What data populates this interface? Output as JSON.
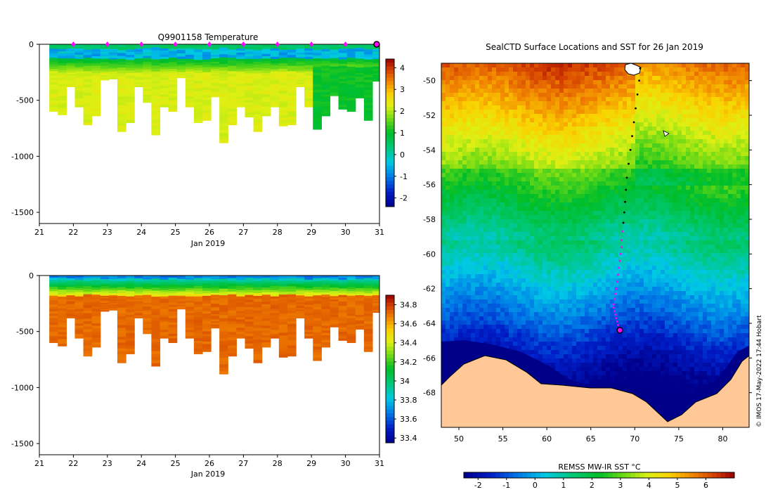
{
  "chart_data": [
    {
      "type": "heatmap",
      "id": "temp_section",
      "title": "Q9901158  Temperature",
      "xlabel": "Jan 2019",
      "ylabel": "",
      "xlim": [
        21,
        31
      ],
      "ylim": [
        -1600,
        0
      ],
      "x_ticks": [
        "21",
        "22",
        "23",
        "24",
        "25",
        "26",
        "27",
        "28",
        "29",
        "30",
        "31"
      ],
      "y_ticks": [
        "0",
        "-500",
        "-1000",
        "-1500"
      ],
      "y_tick_values": [
        0,
        -500,
        -1000,
        -1500
      ],
      "colorbar": {
        "min": -2.4,
        "max": 4.4,
        "ticks": [
          4,
          3,
          2,
          1,
          0,
          -1,
          -2
        ],
        "tick_labels": [
          "4",
          "3",
          "2",
          "1",
          "0",
          "-1",
          "-2"
        ]
      },
      "profile_times": [
        21.3,
        21.55,
        21.8,
        22.05,
        22.3,
        22.55,
        22.8,
        23.05,
        23.3,
        23.55,
        23.8,
        24.05,
        24.3,
        24.55,
        24.8,
        25.05,
        25.3,
        25.55,
        25.8,
        26.05,
        26.3,
        26.55,
        26.8,
        27.05,
        27.3,
        27.55,
        27.8,
        28.05,
        28.3,
        28.55,
        28.8,
        29.05,
        29.3,
        29.55,
        29.8,
        30.05,
        30.3,
        30.55,
        30.8
      ],
      "profile_max_depth": [
        600,
        630,
        380,
        560,
        720,
        640,
        320,
        310,
        780,
        700,
        380,
        520,
        810,
        560,
        600,
        300,
        560,
        700,
        680,
        470,
        880,
        720,
        560,
        650,
        780,
        640,
        560,
        730,
        720,
        380,
        560,
        760,
        640,
        460,
        580,
        600,
        480,
        680,
        330
      ],
      "marker_days": [
        22,
        23,
        24,
        25,
        26,
        27,
        28,
        29,
        30
      ],
      "current_marker_day": 31
    },
    {
      "type": "heatmap",
      "id": "sal_section",
      "title": "",
      "xlabel": "Jan 2019",
      "ylabel": "",
      "xlim": [
        21,
        31
      ],
      "ylim": [
        -1600,
        0
      ],
      "x_ticks": [
        "21",
        "22",
        "23",
        "24",
        "25",
        "26",
        "27",
        "28",
        "29",
        "30",
        "31"
      ],
      "y_ticks": [
        "0",
        "-500",
        "-1000",
        "-1500"
      ],
      "y_tick_values": [
        0,
        -500,
        -1000,
        -1500
      ],
      "colorbar": {
        "min": 33.35,
        "max": 34.9,
        "ticks": [
          34.8,
          34.6,
          34.4,
          34.2,
          34,
          33.8,
          33.6,
          33.4
        ],
        "tick_labels": [
          "34.8",
          "34.6",
          "34.4",
          "34.2",
          "34",
          "33.8",
          "33.6",
          "33.4"
        ]
      }
    },
    {
      "type": "heatmap",
      "id": "sst_map",
      "title": "SealCTD Surface Locations and SST for 26 Jan 2019",
      "xlabel": "",
      "ylabel": "",
      "xlim": [
        48,
        83
      ],
      "ylim": [
        -70,
        -49
      ],
      "x_ticks": [
        "50",
        "55",
        "60",
        "65",
        "70",
        "75",
        "80"
      ],
      "x_tick_values": [
        50,
        55,
        60,
        65,
        70,
        75,
        80
      ],
      "y_ticks": [
        "-50",
        "-52",
        "-54",
        "-56",
        "-58",
        "-60",
        "-62",
        "-64",
        "-66",
        "-68"
      ],
      "y_tick_values": [
        -50,
        -52,
        -54,
        -56,
        -58,
        -60,
        -62,
        -64,
        -66,
        -68
      ],
      "colorbar": {
        "label": "REMSS MW-IR SST °C",
        "min": -2.5,
        "max": 7,
        "ticks": [
          -2,
          -1,
          0,
          1,
          2,
          3,
          4,
          5,
          6
        ],
        "tick_labels": [
          "-2",
          "-1",
          "0",
          "1",
          "2",
          "3",
          "4",
          "5",
          "6"
        ]
      },
      "track": {
        "lon": [
          70.6,
          70.5,
          70.3,
          70.1,
          69.9,
          69.7,
          69.5,
          69.3,
          69.1,
          69.0,
          68.9,
          68.8,
          68.7,
          68.6,
          68.5,
          68.5,
          68.4,
          68.3,
          68.2,
          68.1,
          68.0,
          67.9,
          67.8,
          67.7,
          67.6,
          67.6,
          67.7,
          67.8,
          67.9,
          68.0,
          68.1,
          68.2,
          68.3
        ],
        "lat": [
          -49.3,
          -50.0,
          -50.8,
          -51.6,
          -52.4,
          -53.2,
          -54.0,
          -54.8,
          -55.6,
          -56.3,
          -57.0,
          -57.6,
          -58.2,
          -58.7,
          -59.2,
          -59.6,
          -60.0,
          -60.4,
          -60.8,
          -61.2,
          -61.6,
          -62.0,
          -62.3,
          -62.6,
          -62.9,
          -63.1,
          -63.3,
          -63.5,
          -63.7,
          -63.9,
          -64.1,
          -64.3,
          -64.4
        ]
      },
      "current_position": {
        "lon": 68.3,
        "lat": -64.4
      },
      "credit": "© IMOS 17-May-2022 17:44 Hobart"
    }
  ]
}
